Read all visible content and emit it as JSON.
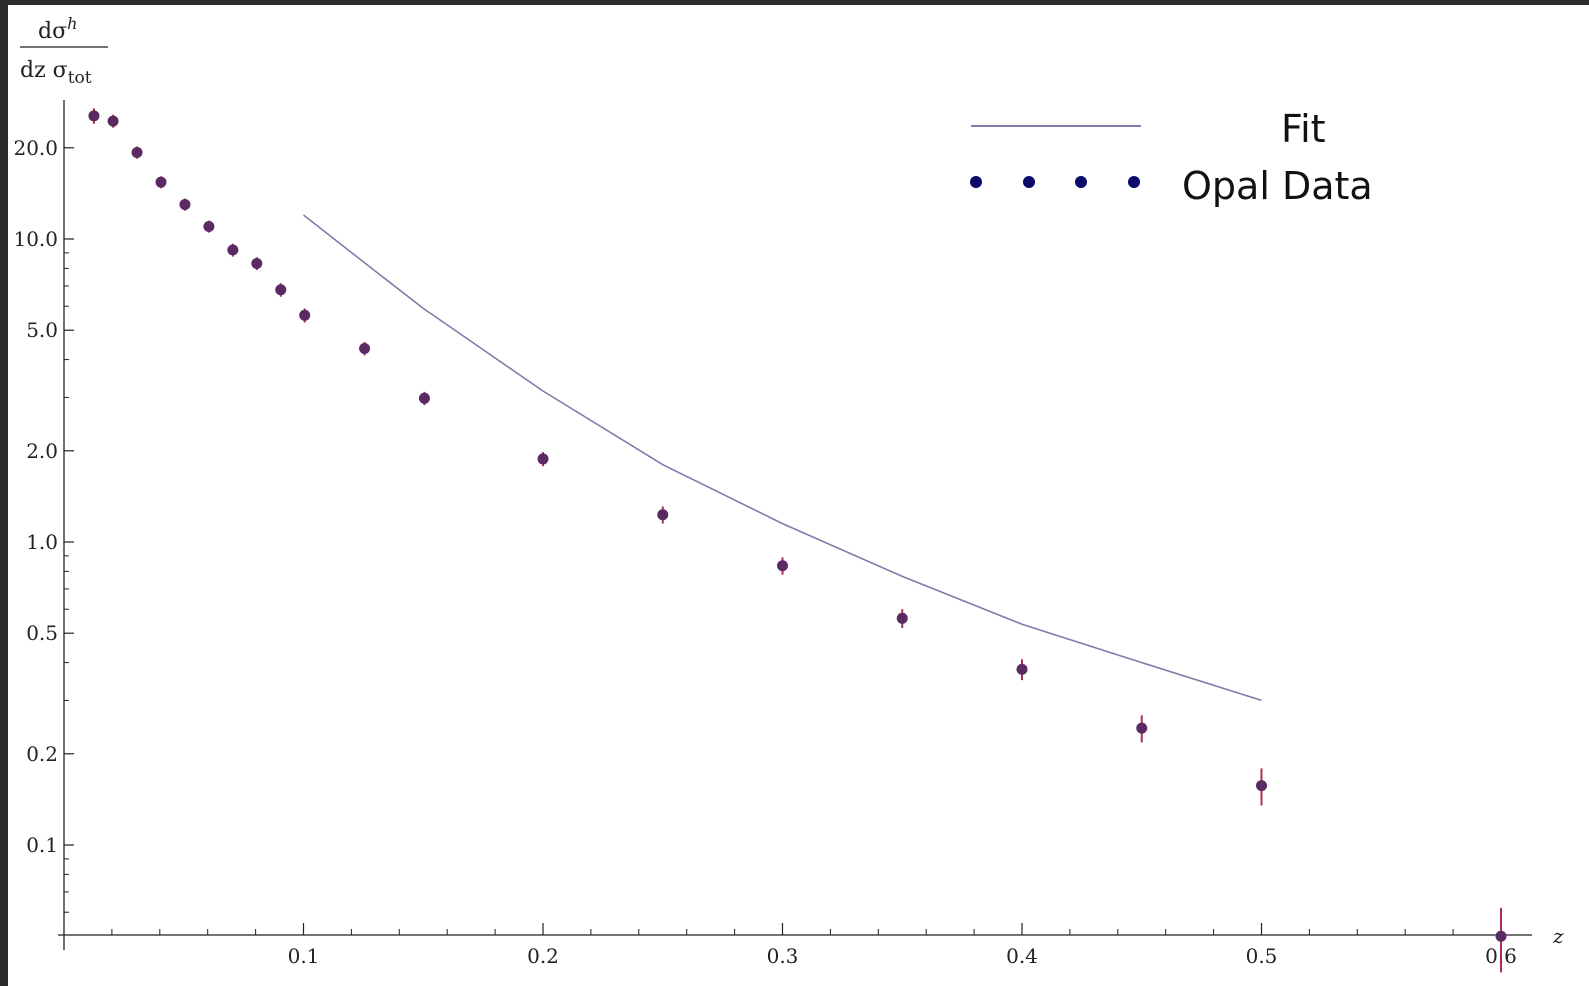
{
  "chart_data": {
    "type": "scatter",
    "xlabel": "z",
    "ylabel": {
      "numerator": "dσ",
      "numerator_sup": "h",
      "denominator": "dz σ",
      "denominator_sub": "tot"
    },
    "x_axis": {
      "range": [
        0,
        0.62
      ],
      "ticks": [
        0.1,
        0.2,
        0.3,
        0.4,
        0.5,
        0.6
      ],
      "tick_labels": [
        "0.1",
        "0.2",
        "0.3",
        "0.4",
        "0.5",
        "0.6"
      ]
    },
    "y_axis": {
      "scale": "log",
      "range": [
        0.05,
        30
      ],
      "ticks": [
        0.1,
        0.2,
        0.5,
        1.0,
        2.0,
        5.0,
        10.0,
        20.0
      ],
      "tick_labels": [
        "0.1",
        "0.2",
        "0.5",
        "1.0",
        "2.0",
        "5.0",
        "10.0",
        "20.0"
      ]
    },
    "legend": {
      "position": "top-right",
      "entries": [
        {
          "label": "Fit",
          "style": "line"
        },
        {
          "label": "Opal Data",
          "style": "points"
        }
      ]
    },
    "series": [
      {
        "name": "Opal Data",
        "kind": "points",
        "color": "#5b2a63",
        "error_color": "#b0304a",
        "points": [
          {
            "x": 0.0125,
            "y": 25.5,
            "err": 1.5
          },
          {
            "x": 0.0205,
            "y": 24.5,
            "err": 1.2
          },
          {
            "x": 0.0305,
            "y": 19.3,
            "err": 0.9
          },
          {
            "x": 0.0405,
            "y": 15.4,
            "err": 0.7
          },
          {
            "x": 0.0505,
            "y": 13.0,
            "err": 0.6
          },
          {
            "x": 0.0605,
            "y": 11.0,
            "err": 0.5
          },
          {
            "x": 0.0705,
            "y": 9.2,
            "err": 0.45
          },
          {
            "x": 0.0805,
            "y": 8.3,
            "err": 0.4
          },
          {
            "x": 0.0905,
            "y": 6.8,
            "err": 0.35
          },
          {
            "x": 0.1005,
            "y": 5.6,
            "err": 0.3
          },
          {
            "x": 0.1255,
            "y": 4.35,
            "err": 0.22
          },
          {
            "x": 0.1505,
            "y": 2.98,
            "err": 0.15
          },
          {
            "x": 0.2,
            "y": 1.88,
            "err": 0.1
          },
          {
            "x": 0.25,
            "y": 1.23,
            "err": 0.08
          },
          {
            "x": 0.3,
            "y": 0.835,
            "err": 0.055
          },
          {
            "x": 0.35,
            "y": 0.56,
            "err": 0.04
          },
          {
            "x": 0.4,
            "y": 0.38,
            "err": 0.03
          },
          {
            "x": 0.45,
            "y": 0.243,
            "err": 0.025
          },
          {
            "x": 0.5,
            "y": 0.157,
            "err": 0.022
          },
          {
            "x": 0.6,
            "y": 0.05,
            "err": 0.012
          }
        ]
      },
      {
        "name": "Fit",
        "kind": "line",
        "color": "#7b7fa8",
        "points": [
          {
            "x": 0.1,
            "y": 12.0
          },
          {
            "x": 0.125,
            "y": 8.4
          },
          {
            "x": 0.15,
            "y": 5.9
          },
          {
            "x": 0.2,
            "y": 3.15
          },
          {
            "x": 0.25,
            "y": 1.8
          },
          {
            "x": 0.3,
            "y": 1.15
          },
          {
            "x": 0.35,
            "y": 0.77
          },
          {
            "x": 0.4,
            "y": 0.535
          },
          {
            "x": 0.45,
            "y": 0.4
          },
          {
            "x": 0.5,
            "y": 0.3
          }
        ]
      }
    ],
    "legend_marker_color": "#0a0a6b"
  }
}
